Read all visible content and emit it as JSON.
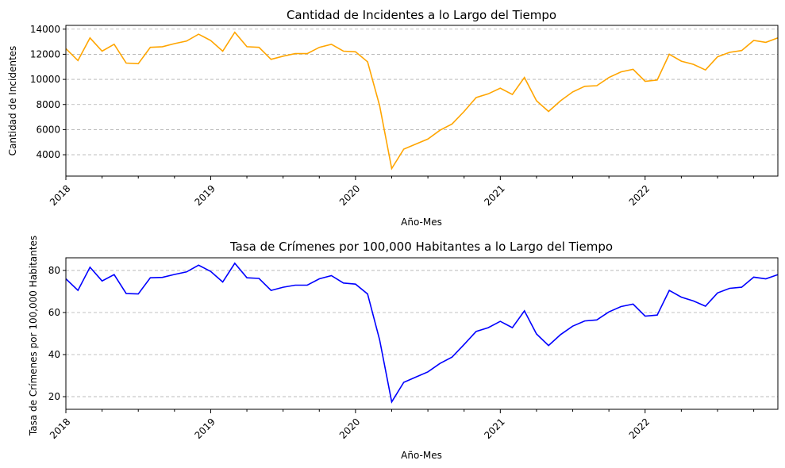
{
  "chart_data": [
    {
      "type": "line",
      "title": "Cantidad de Incidentes a lo Largo del Tiempo",
      "xlabel": "Año-Mes",
      "ylabel": "Cantidad de Incidentes",
      "x_start": "2018-01",
      "x_end": "2022-12",
      "x_ticks": [
        "2018",
        "2019",
        "2020",
        "2021",
        "2022"
      ],
      "ylim": [
        2300,
        14300
      ],
      "y_ticks": [
        4000,
        6000,
        8000,
        10000,
        12000,
        14000
      ],
      "grid": "y-dashed",
      "line_color": "#ffa500",
      "values": [
        12450,
        11500,
        13300,
        12250,
        12800,
        11300,
        11250,
        12550,
        12600,
        12850,
        13050,
        13600,
        13100,
        12250,
        13750,
        12600,
        12550,
        11600,
        11850,
        12050,
        12050,
        12550,
        12800,
        12250,
        12200,
        11400,
        7900,
        2900,
        4450,
        4850,
        5250,
        5950,
        6450,
        7450,
        8550,
        8850,
        9300,
        8800,
        10150,
        8300,
        7450,
        8300,
        9000,
        9450,
        9500,
        10150,
        10600,
        10800,
        9850,
        9950,
        12000,
        11450,
        11200,
        10750,
        11800,
        12150,
        12300,
        13100,
        12950,
        13300
      ]
    },
    {
      "type": "line",
      "title": "Tasa de Crímenes por 100,000 Habitantes a lo Largo del Tiempo",
      "xlabel": "Año-Mes",
      "ylabel": "Tasa de Crímenes por 100,000 Habitantes",
      "x_start": "2018-01",
      "x_end": "2022-12",
      "x_ticks": [
        "2018",
        "2019",
        "2020",
        "2021",
        "2022"
      ],
      "ylim": [
        14,
        86
      ],
      "y_ticks": [
        20,
        40,
        60,
        80
      ],
      "grid": "y-dashed",
      "line_color": "#0000ff",
      "values": [
        76,
        70.5,
        81.5,
        75,
        78,
        69,
        68.8,
        76.5,
        76.7,
        78.1,
        79.3,
        82.5,
        79.5,
        74.5,
        83.4,
        76.5,
        76.2,
        70.5,
        72,
        73,
        73,
        76,
        77.5,
        74,
        73.5,
        68.8,
        47,
        17.5,
        26.8,
        29.3,
        31.8,
        35.8,
        38.8,
        44.8,
        51,
        52.8,
        55.8,
        52.8,
        60.8,
        49.8,
        44.3,
        49.5,
        53.5,
        56,
        56.5,
        60.3,
        62.8,
        64,
        58.3,
        58.8,
        70.5,
        67.3,
        65.5,
        63,
        69.3,
        71.5,
        72,
        76.8,
        76,
        78
      ]
    }
  ]
}
